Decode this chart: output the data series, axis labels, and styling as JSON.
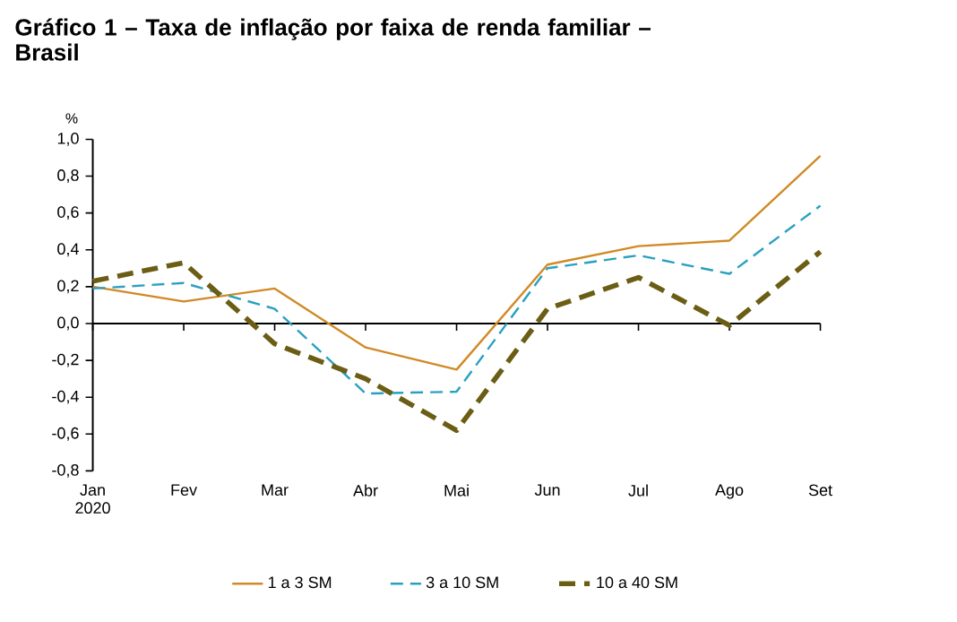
{
  "chart_data": {
    "type": "line",
    "title": "Gráfico 1 – Taxa de inflação por faixa de renda familiar – Brasil",
    "ylabel": "%",
    "categories": [
      "Jan 2020",
      "Fev",
      "Mar",
      "Abr",
      "Mai",
      "Jun",
      "Jul",
      "Ago",
      "Set"
    ],
    "series": [
      {
        "name": "1 a 3 SM",
        "color": "#d08a26",
        "line_style": "solid",
        "values": [
          0.2,
          0.12,
          0.19,
          -0.13,
          -0.25,
          0.32,
          0.42,
          0.45,
          0.91
        ]
      },
      {
        "name": "3 a 10 SM",
        "color": "#2aa0c0",
        "line_style": "dashed",
        "values": [
          0.19,
          0.22,
          0.08,
          -0.38,
          -0.37,
          0.3,
          0.37,
          0.27,
          0.64
        ]
      },
      {
        "name": "10 a 40 SM",
        "color": "#6b5e14",
        "line_style": "dashed",
        "values": [
          0.23,
          0.33,
          -0.11,
          -0.3,
          -0.58,
          0.08,
          0.25,
          -0.01,
          0.39
        ]
      }
    ],
    "ylim": [
      -0.8,
      1.0
    ],
    "yticks": [
      {
        "value": -0.8,
        "label": "-0,8"
      },
      {
        "value": -0.6,
        "label": "-0,6"
      },
      {
        "value": -0.4,
        "label": "-0,4"
      },
      {
        "value": -0.2,
        "label": "-0,2"
      },
      {
        "value": 0,
        "label": "0,0"
      },
      {
        "value": 0.2,
        "label": "0,2"
      },
      {
        "value": 0.4,
        "label": "0,4"
      },
      {
        "value": 0.6,
        "label": "0,6"
      },
      {
        "value": 0.8,
        "label": "0,8"
      },
      {
        "value": 1.0,
        "label": "1,0"
      }
    ],
    "legend": "bottom",
    "marker": "none"
  }
}
